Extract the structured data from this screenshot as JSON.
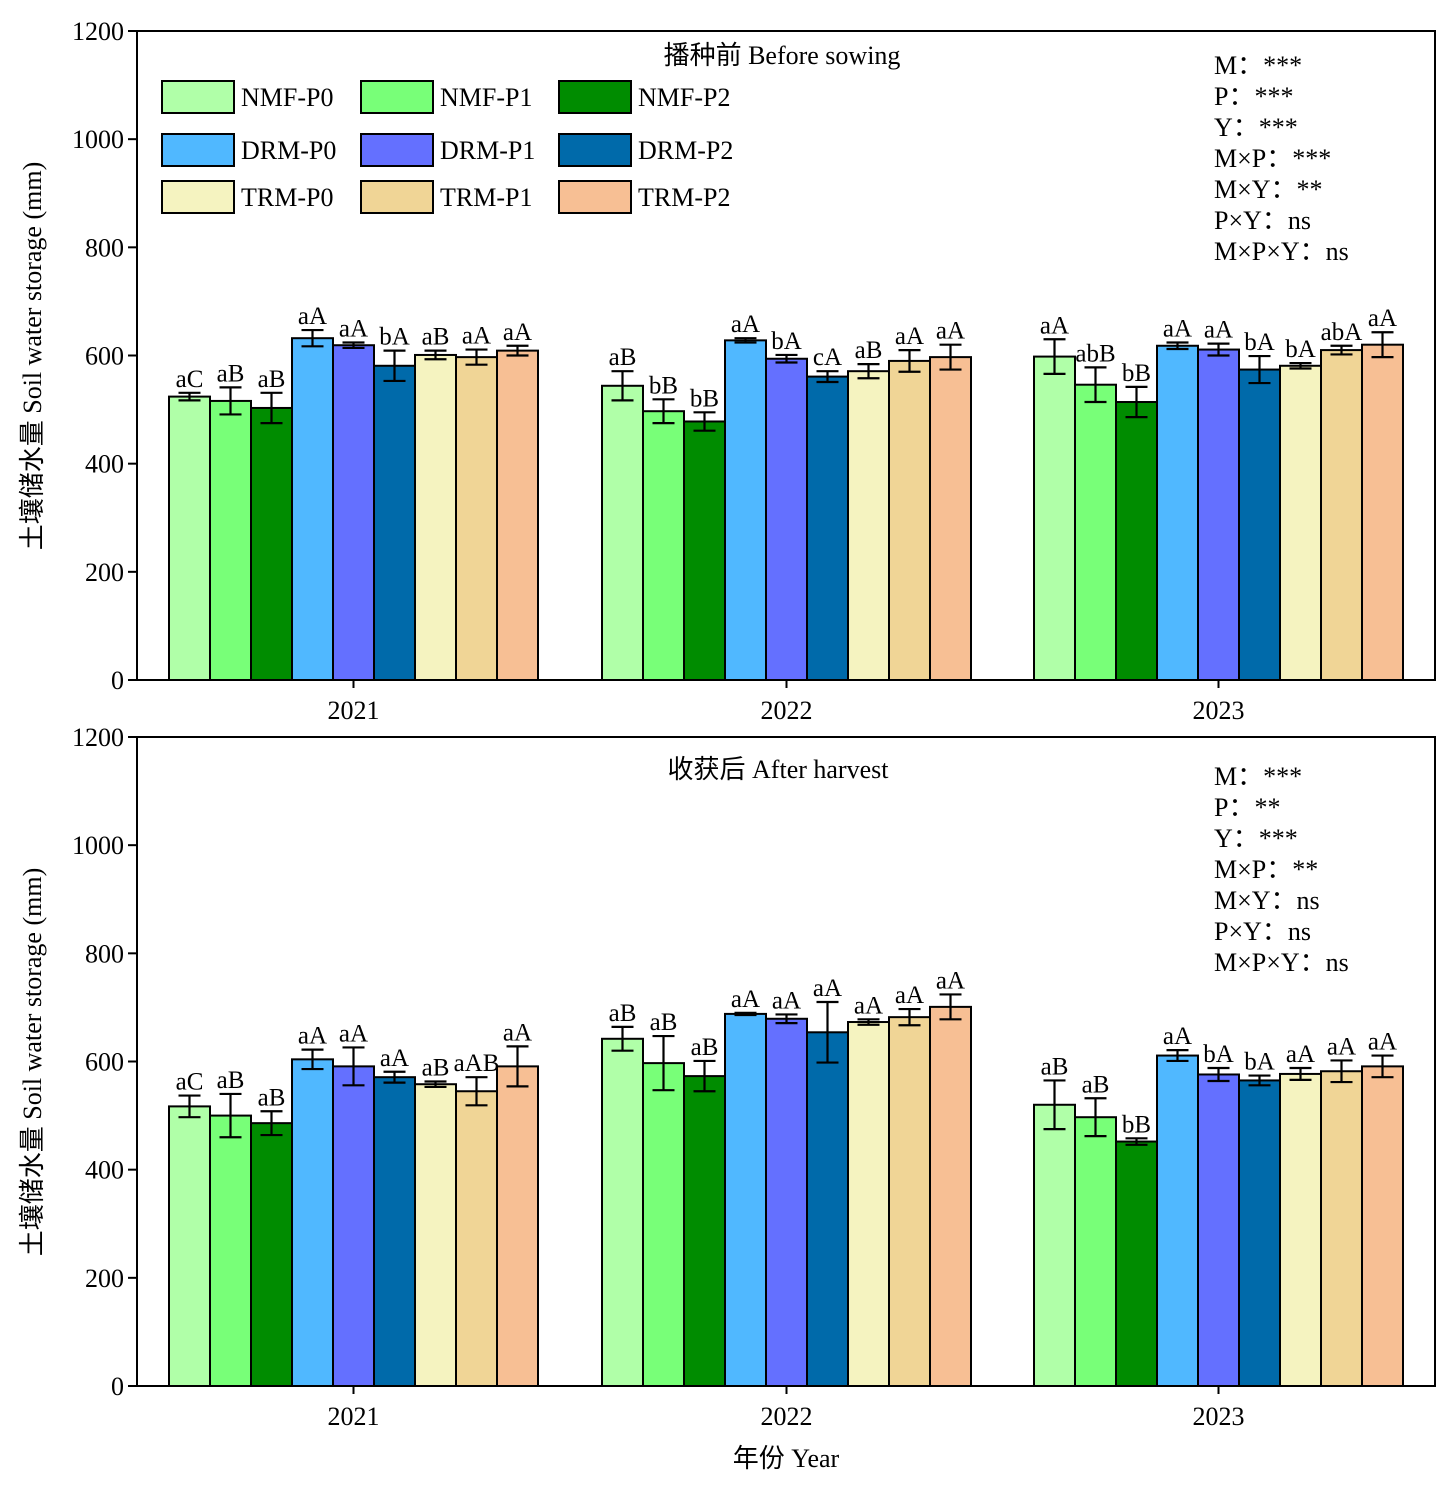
{
  "figure": {
    "xlabel": "年份 Year",
    "ylabel": "土壤储水量 Soil water storage (mm)"
  },
  "legend": {
    "items": [
      {
        "name": "NMF-P0",
        "color": "#b0ffa8"
      },
      {
        "name": "NMF-P1",
        "color": "#78ff78"
      },
      {
        "name": "NMF-P2",
        "color": "#008c00"
      },
      {
        "name": "DRM-P0",
        "color": "#50b8ff"
      },
      {
        "name": "DRM-P1",
        "color": "#6470ff"
      },
      {
        "name": "DRM-P2",
        "color": "#006aaa"
      },
      {
        "name": "TRM-P0",
        "color": "#f5f3c0"
      },
      {
        "name": "TRM-P1",
        "color": "#f0d596"
      },
      {
        "name": "TRM-P2",
        "color": "#f7bf94"
      }
    ]
  },
  "chart_data": [
    {
      "type": "bar",
      "title": "播种前 Before sowing",
      "categories": [
        "2021",
        "2022",
        "2023"
      ],
      "ylim": [
        0,
        1200
      ],
      "yticks": [
        0,
        200,
        400,
        600,
        800,
        1000,
        1200
      ],
      "stats": [
        "M：***",
        "P：***",
        "Y：***",
        "M×P：***",
        "M×Y：**",
        "P×Y：ns",
        "M×P×Y：ns"
      ],
      "series": [
        {
          "name": "NMF-P0",
          "values": [
            524,
            544,
            598
          ],
          "errors": [
            7,
            27,
            32
          ],
          "labels": [
            "aC",
            "aB",
            "aA"
          ]
        },
        {
          "name": "NMF-P1",
          "values": [
            516,
            497,
            546
          ],
          "errors": [
            25,
            22,
            32
          ],
          "labels": [
            "aB",
            "bB",
            "abB"
          ]
        },
        {
          "name": "NMF-P2",
          "values": [
            503,
            478,
            514
          ],
          "errors": [
            28,
            17,
            28
          ],
          "labels": [
            "aB",
            "bB",
            "bB"
          ]
        },
        {
          "name": "DRM-P0",
          "values": [
            632,
            628,
            618
          ],
          "errors": [
            15,
            4,
            6
          ],
          "labels": [
            "aA",
            "aA",
            "aA"
          ]
        },
        {
          "name": "DRM-P1",
          "values": [
            619,
            594,
            611
          ],
          "errors": [
            5,
            7,
            11
          ],
          "labels": [
            "aA",
            "bA",
            "aA"
          ]
        },
        {
          "name": "DRM-P2",
          "values": [
            581,
            561,
            574
          ],
          "errors": [
            28,
            10,
            25
          ],
          "labels": [
            "bA",
            "cA",
            "bA"
          ]
        },
        {
          "name": "TRM-P0",
          "values": [
            601,
            571,
            581
          ],
          "errors": [
            8,
            13,
            5
          ],
          "labels": [
            "aB",
            "aB",
            "bA"
          ]
        },
        {
          "name": "TRM-P1",
          "values": [
            597,
            590,
            610
          ],
          "errors": [
            14,
            20,
            8
          ],
          "labels": [
            "aA",
            "aA",
            "abA"
          ]
        },
        {
          "name": "TRM-P2",
          "values": [
            609,
            597,
            620
          ],
          "errors": [
            9,
            23,
            23
          ],
          "labels": [
            "aA",
            "aA",
            "aA"
          ]
        }
      ]
    },
    {
      "type": "bar",
      "title": "收获后 After harvest",
      "categories": [
        "2021",
        "2022",
        "2023"
      ],
      "ylim": [
        0,
        1200
      ],
      "yticks": [
        0,
        200,
        400,
        600,
        800,
        1000,
        1200
      ],
      "stats": [
        "M：***",
        "P：**",
        "Y：***",
        "M×P：**",
        "M×Y：ns",
        "P×Y：ns",
        "M×P×Y：ns"
      ],
      "series": [
        {
          "name": "NMF-P0",
          "values": [
            517,
            642,
            520
          ],
          "errors": [
            20,
            22,
            45
          ],
          "labels": [
            "aC",
            "aB",
            "aB"
          ]
        },
        {
          "name": "NMF-P1",
          "values": [
            500,
            597,
            497
          ],
          "errors": [
            40,
            50,
            35
          ],
          "labels": [
            "aB",
            "aB",
            "aB"
          ]
        },
        {
          "name": "NMF-P2",
          "values": [
            486,
            573,
            452
          ],
          "errors": [
            22,
            28,
            6
          ],
          "labels": [
            "aB",
            "aB",
            "bB"
          ]
        },
        {
          "name": "DRM-P0",
          "values": [
            604,
            688,
            611
          ],
          "errors": [
            18,
            2,
            10
          ],
          "labels": [
            "aA",
            "aA",
            "aA"
          ]
        },
        {
          "name": "DRM-P1",
          "values": [
            591,
            679,
            576
          ],
          "errors": [
            35,
            8,
            12
          ],
          "labels": [
            "aA",
            "aA",
            "bA"
          ]
        },
        {
          "name": "DRM-P2",
          "values": [
            571,
            654,
            565
          ],
          "errors": [
            10,
            56,
            9
          ],
          "labels": [
            "aA",
            "aA",
            "bA"
          ]
        },
        {
          "name": "TRM-P0",
          "values": [
            558,
            673,
            577
          ],
          "errors": [
            5,
            5,
            11
          ],
          "labels": [
            "aB",
            "aA",
            "aA"
          ]
        },
        {
          "name": "TRM-P1",
          "values": [
            545,
            682,
            582
          ],
          "errors": [
            26,
            15,
            20
          ],
          "labels": [
            "aAB",
            "aA",
            "aA"
          ]
        },
        {
          "name": "TRM-P2",
          "values": [
            591,
            701,
            591
          ],
          "errors": [
            37,
            23,
            20
          ],
          "labels": [
            "aA",
            "aA",
            "aA"
          ]
        }
      ]
    }
  ]
}
